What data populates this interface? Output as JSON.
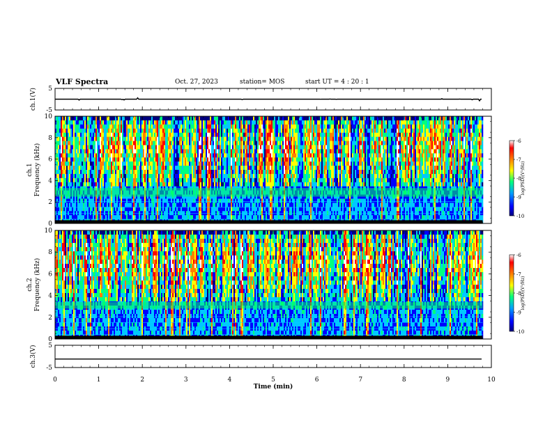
{
  "header": {
    "title": "VLF Spectra",
    "date": "Oct. 27, 2023",
    "station": "station= MOS",
    "start_ut": "start UT =   4 : 20 : 1"
  },
  "chart_data": [
    {
      "panel": "ch1-waveform",
      "type": "line",
      "ylabel": "ch.1(V)",
      "ylim": [
        -5,
        5
      ],
      "yticks": [
        "5",
        "-5"
      ],
      "baseline_value": 0,
      "x_range_min": [
        0,
        9.8
      ]
    },
    {
      "panel": "ch1-spectrogram",
      "type": "heatmap",
      "ylabel_line1": "ch.1",
      "ylabel_line2": "Frequency (kHz)",
      "ylim": [
        0,
        10
      ],
      "yticks": [
        "0",
        "2",
        "4",
        "6",
        "8",
        "10"
      ],
      "colorbar": {
        "label": "log(PSD)(V²/Hz)",
        "range": [
          -10,
          -6
        ],
        "ticks": [
          "-6",
          "-7",
          "-8",
          "-9",
          "-10"
        ]
      },
      "background_band_khz": [
        0,
        3
      ],
      "bright_band_khz": [
        2.5,
        3.3
      ],
      "x_range_min": [
        0,
        9.8
      ]
    },
    {
      "panel": "ch2-spectrogram",
      "type": "heatmap",
      "ylabel_line1": "ch.2",
      "ylabel_line2": "Frequency (kHz)",
      "ylim": [
        0,
        10
      ],
      "yticks": [
        "0",
        "2",
        "4",
        "6",
        "8",
        "10"
      ],
      "colorbar": {
        "label": "log(PSD)(V²/Hz)",
        "range": [
          -10,
          -6
        ],
        "ticks": [
          "-6",
          "-7",
          "-8",
          "-9",
          "-10"
        ]
      },
      "background_band_khz": [
        0,
        3
      ],
      "bright_band_khz": [
        2.8,
        3.4
      ],
      "x_range_min": [
        0,
        9.8
      ]
    },
    {
      "panel": "ch3-waveform",
      "type": "line",
      "ylabel": "ch.3(V)",
      "ylim": [
        -5,
        5
      ],
      "yticks": [
        "5",
        "-5"
      ],
      "baseline_value": -1.2,
      "x_range_min": [
        0,
        9.8
      ]
    }
  ],
  "x_axis": {
    "label": "Time (min)",
    "range": [
      0,
      10
    ],
    "ticks": [
      "0",
      "1",
      "2",
      "3",
      "4",
      "5",
      "6",
      "7",
      "8",
      "9",
      "10"
    ]
  },
  "colors": {
    "colormap": [
      "#000080",
      "#0000ff",
      "#00c8ff",
      "#00ff80",
      "#ffff00",
      "#ff8000",
      "#ff0000",
      "#ffffff"
    ],
    "axis": "#000000"
  }
}
